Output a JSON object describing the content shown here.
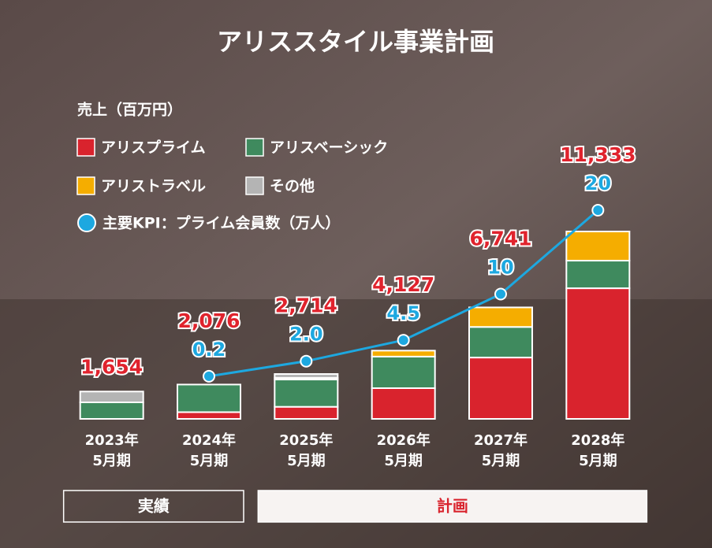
{
  "chart_data": {
    "type": "stacked-bar-line",
    "title": "アリススタイル事業計画",
    "legend_title": "売上（百万円）",
    "categories": [
      [
        "2023年",
        "5月期"
      ],
      [
        "2024年",
        "5月期"
      ],
      [
        "2025年",
        "5月期"
      ],
      [
        "2026年",
        "5月期"
      ],
      [
        "2027年",
        "5月期"
      ],
      [
        "2028年",
        "5月期"
      ]
    ],
    "series": [
      {
        "name": "アリスプライム",
        "color": "#d9232d",
        "values": [
          0,
          406,
          730,
          1857,
          3710,
          7900
        ]
      },
      {
        "name": "アリスベーシック",
        "color": "#3f8a5e",
        "values": [
          1000,
          1670,
          1650,
          1910,
          1850,
          1670
        ]
      },
      {
        "name": "アリストラベル",
        "color": "#f5ad00",
        "values": [
          0,
          0,
          100,
          360,
          1181,
          1763
        ]
      },
      {
        "name": "その他",
        "color": "#b4b4b4",
        "values": [
          654,
          0,
          234,
          0,
          0,
          0
        ]
      }
    ],
    "totals": {
      "color": "#e0232d",
      "values": [
        1654,
        2076,
        2714,
        4127,
        6741,
        11333
      ],
      "value_labels": [
        "1,654",
        "2,076",
        "2,714",
        "4,127",
        "6,741",
        "11,333"
      ]
    },
    "kpi": {
      "name": "主要KPI：プライム会員数（万人）",
      "color": "#1da8e0",
      "axis": "y2",
      "values": [
        null,
        0.2,
        2.0,
        4.5,
        10,
        20
      ],
      "value_labels": [
        null,
        "0.2",
        "2.0",
        "4.5",
        "10",
        "20"
      ]
    },
    "periods": [
      {
        "label": "実績",
        "from": 0,
        "to": 1
      },
      {
        "label": "計画",
        "from": 2,
        "to": 5
      }
    ]
  }
}
